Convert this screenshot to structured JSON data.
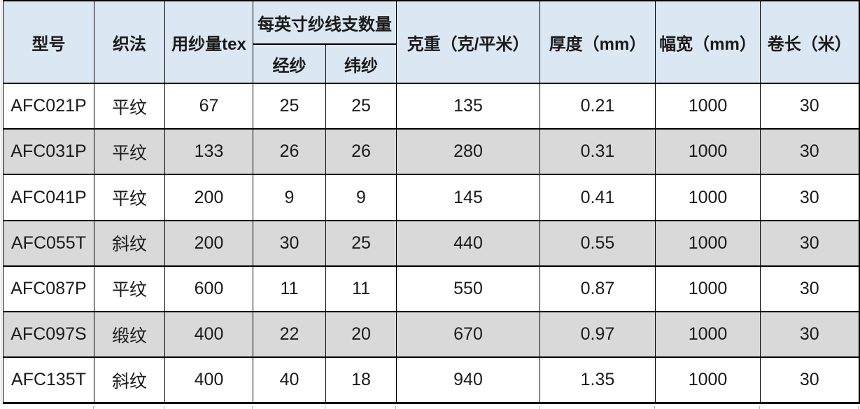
{
  "table": {
    "group_header": "每英寸纱线支数量",
    "columns": [
      {
        "key": "model",
        "label": "型号"
      },
      {
        "key": "weave",
        "label": "织法"
      },
      {
        "key": "yarn-tex",
        "label": "用纱量tex"
      },
      {
        "key": "warp",
        "label": "经纱"
      },
      {
        "key": "weft",
        "label": "纬纱"
      },
      {
        "key": "weight",
        "label": "克重（克/平米）"
      },
      {
        "key": "thickness",
        "label": "厚度（mm）"
      },
      {
        "key": "width",
        "label": "幅宽（mm）"
      },
      {
        "key": "length",
        "label": "卷长（米）"
      }
    ],
    "rows": [
      [
        "AFC021P",
        "平纹",
        "67",
        "25",
        "25",
        "135",
        "0.21",
        "1000",
        "30"
      ],
      [
        "AFC031P",
        "平纹",
        "133",
        "26",
        "26",
        "280",
        "0.31",
        "1000",
        "30"
      ],
      [
        "AFC041P",
        "平纹",
        "200",
        "9",
        "9",
        "145",
        "0.41",
        "1000",
        "30"
      ],
      [
        "AFC055T",
        "斜纹",
        "200",
        "30",
        "25",
        "440",
        "0.55",
        "1000",
        "30"
      ],
      [
        "AFC087P",
        "平纹",
        "600",
        "11",
        "11",
        "550",
        "0.87",
        "1000",
        "30"
      ],
      [
        "AFC097S",
        "缎纹",
        "400",
        "22",
        "20",
        "670",
        "0.97",
        "1000",
        "30"
      ],
      [
        "AFC135T",
        "斜纹",
        "400",
        "40",
        "18",
        "940",
        "1.35",
        "1000",
        "30"
      ]
    ],
    "colors": {
      "header_bg": "#dbe7f3",
      "row_bg": "#ffffff",
      "row_alt_bg": "#d9d9d9",
      "border": "#000000"
    }
  }
}
